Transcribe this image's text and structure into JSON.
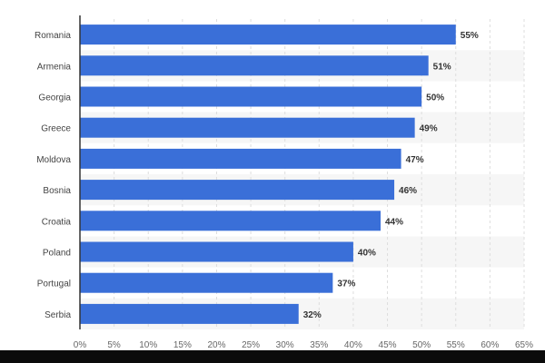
{
  "chart_data": {
    "type": "bar",
    "orientation": "horizontal",
    "title": "",
    "xlabel": "",
    "ylabel": "",
    "categories": [
      "Romania",
      "Armenia",
      "Georgia",
      "Greece",
      "Moldova",
      "Bosnia",
      "Croatia",
      "Poland",
      "Portugal",
      "Serbia"
    ],
    "values": [
      55,
      51,
      50,
      49,
      47,
      46,
      44,
      40,
      37,
      32
    ],
    "value_labels": [
      "55%",
      "51%",
      "50%",
      "49%",
      "47%",
      "46%",
      "44%",
      "40%",
      "37%",
      "32%"
    ],
    "xlim": [
      0,
      65
    ],
    "x_ticks": [
      0,
      5,
      10,
      15,
      20,
      25,
      30,
      35,
      40,
      45,
      50,
      55,
      60,
      65
    ],
    "x_tick_labels": [
      "0%",
      "5%",
      "10%",
      "15%",
      "20%",
      "25%",
      "30%",
      "35%",
      "40%",
      "45%",
      "50%",
      "55%",
      "60%",
      "65%"
    ],
    "grid": true,
    "legend": "none",
    "colors": {
      "bar": "#3a6fd8",
      "grid": "#dddddd",
      "band": "#f6f6f6",
      "axis": "#333333"
    }
  }
}
